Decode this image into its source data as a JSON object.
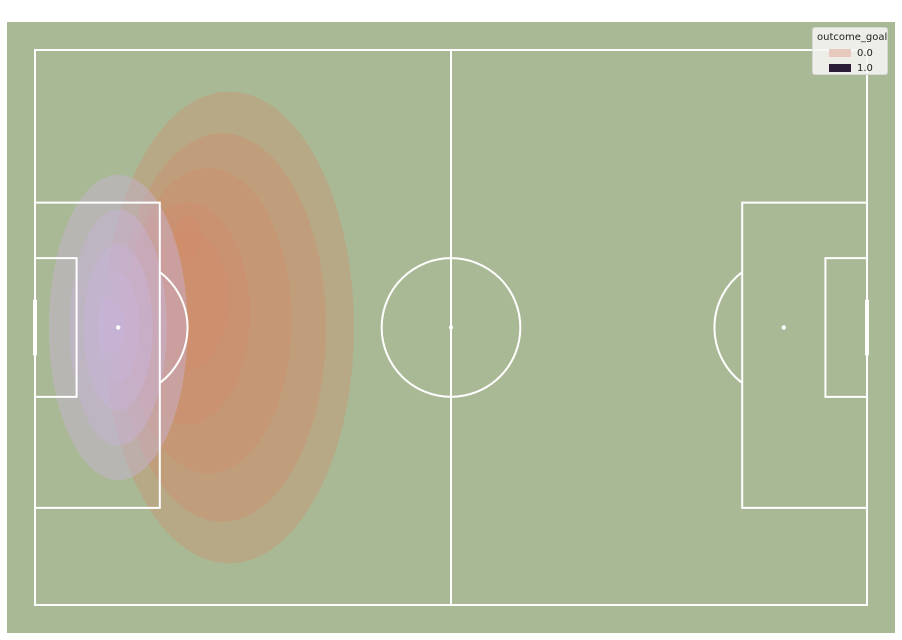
{
  "chart_data": {
    "type": "kde-density",
    "grid": false,
    "legend_placement": "top-right",
    "legend": {
      "title": "outcome_goal",
      "entries": [
        {
          "label": "0.0",
          "color": "#e8c9bd"
        },
        {
          "label": "1.0",
          "color": "#2b1d38"
        }
      ]
    },
    "pitch": {
      "length": 120,
      "width": 80,
      "background_color": "#aab995",
      "line_color": "#ffffff"
    },
    "series": [
      {
        "name": "0.0",
        "color": "#d48a66",
        "approx_density_levels": [
          {
            "level": 1,
            "center": [
              28,
              40
            ],
            "spread": [
              18,
              34
            ]
          },
          {
            "level": 2,
            "center": [
              27,
              40
            ],
            "spread": [
              15,
              28
            ]
          },
          {
            "level": 3,
            "center": [
              25,
              39
            ],
            "spread": [
              12,
              22
            ]
          },
          {
            "level": 4,
            "center": [
              22,
              38
            ],
            "spread": [
              9,
              16
            ]
          },
          {
            "level": 5,
            "center": [
              22,
              36
            ],
            "spread": [
              6,
              10
            ]
          },
          {
            "level": 6,
            "center": [
              22,
              27
            ],
            "spread": [
              2,
              3
            ]
          }
        ]
      },
      {
        "name": "1.0",
        "color": "#c8b4d8",
        "approx_density_levels": [
          {
            "level": 1,
            "center": [
              12,
              40
            ],
            "spread": [
              10,
              22
            ]
          },
          {
            "level": 2,
            "center": [
              12,
              40
            ],
            "spread": [
              7,
              17
            ]
          },
          {
            "level": 3,
            "center": [
              12,
              40
            ],
            "spread": [
              5,
              12
            ]
          },
          {
            "level": 4,
            "center": [
              12,
              40
            ],
            "spread": [
              3,
              8
            ]
          },
          {
            "level": 5,
            "center": [
              11,
              40
            ],
            "spread": [
              2,
              4
            ]
          }
        ]
      }
    ]
  }
}
